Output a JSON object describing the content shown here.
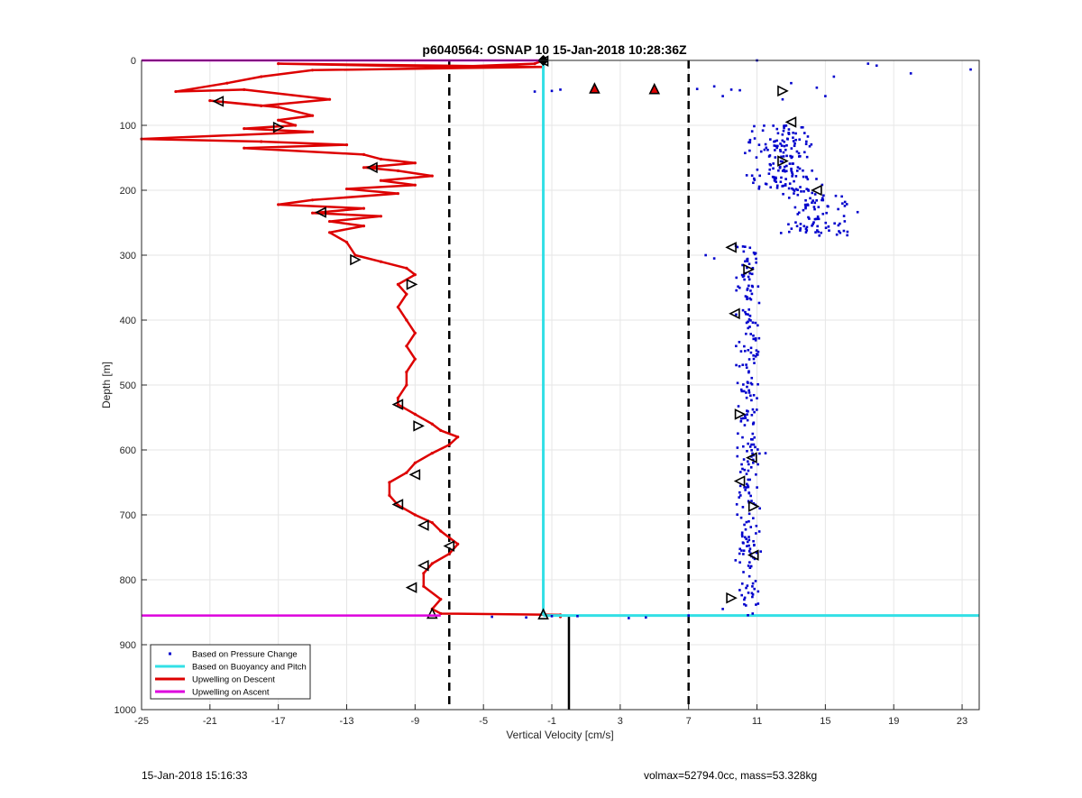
{
  "footer": {
    "timestamp": "15-Jan-2018 15:16:33",
    "glider_info": "volmax=52794.0cc, mass=53.328kg"
  },
  "chart_data": {
    "type": "scatter",
    "title": "p6040564: OSNAP 10 15-Jan-2018 10:28:36Z",
    "xlabel": "Vertical Velocity [cm/s]",
    "ylabel": "Depth [m]",
    "xlim": [
      -25,
      24
    ],
    "ylim": [
      1000,
      0
    ],
    "y_reversed": true,
    "grid": true,
    "xticks": [
      -25,
      -21,
      -17,
      -13,
      -9,
      -5,
      -1,
      3,
      7,
      11,
      15,
      19,
      23
    ],
    "yticks": [
      0,
      100,
      200,
      300,
      400,
      500,
      600,
      700,
      800,
      900,
      1000
    ],
    "legend_position": "bottom-left",
    "legend": [
      {
        "label": "Based on Pressure Change",
        "style": "dot",
        "color": "#0000cc"
      },
      {
        "label": "Based on Buoyancy and Pitch",
        "style": "line",
        "color": "#33e0e6"
      },
      {
        "label": "Upwelling on Descent",
        "style": "line",
        "color": "#dd0000"
      },
      {
        "label": "Upwelling on Ascent",
        "style": "line",
        "color": "#dd00dd"
      }
    ],
    "reference_lines": [
      {
        "x": -7,
        "style": "dashed",
        "color": "#000000"
      },
      {
        "x": 7,
        "style": "dashed",
        "color": "#000000"
      },
      {
        "x": 0,
        "y_from": 855,
        "y_to": 1000,
        "style": "solid",
        "color": "#000000"
      }
    ],
    "series": [
      {
        "name": "Upwelling on Descent",
        "kind": "line",
        "color": "#dd0000",
        "points": [
          [
            -1.5,
            0
          ],
          [
            -2,
            5
          ],
          [
            -7,
            10
          ],
          [
            -17,
            5
          ],
          [
            -1.5,
            10
          ],
          [
            -15,
            15
          ],
          [
            -18,
            25
          ],
          [
            -20,
            35
          ],
          [
            -23,
            48
          ],
          [
            -19,
            45
          ],
          [
            -14,
            60
          ],
          [
            -18,
            70
          ],
          [
            -21,
            62
          ],
          [
            -17,
            72
          ],
          [
            -15,
            85
          ],
          [
            -17,
            92
          ],
          [
            -16,
            100
          ],
          [
            -19,
            105
          ],
          [
            -15,
            110
          ],
          [
            -25,
            121
          ],
          [
            -18,
            125
          ],
          [
            -13,
            130
          ],
          [
            -19,
            135
          ],
          [
            -12,
            145
          ],
          [
            -11,
            152
          ],
          [
            -9,
            158
          ],
          [
            -12,
            165
          ],
          [
            -10,
            170
          ],
          [
            -8,
            178
          ],
          [
            -11,
            185
          ],
          [
            -9,
            192
          ],
          [
            -13,
            198
          ],
          [
            -10,
            205
          ],
          [
            -15,
            215
          ],
          [
            -17,
            222
          ],
          [
            -12,
            228
          ],
          [
            -15,
            235
          ],
          [
            -11,
            240
          ],
          [
            -14,
            248
          ],
          [
            -12,
            255
          ],
          [
            -14,
            265
          ],
          [
            -13,
            280
          ],
          [
            -12.5,
            300
          ],
          [
            -11,
            310
          ],
          [
            -9.5,
            320
          ],
          [
            -9,
            330
          ],
          [
            -10,
            345
          ],
          [
            -9.5,
            360
          ],
          [
            -10,
            380
          ],
          [
            -9.5,
            400
          ],
          [
            -9,
            420
          ],
          [
            -9.5,
            440
          ],
          [
            -9,
            460
          ],
          [
            -9.5,
            480
          ],
          [
            -9.5,
            500
          ],
          [
            -10,
            520
          ],
          [
            -10,
            530
          ],
          [
            -9,
            545
          ],
          [
            -8,
            560
          ],
          [
            -7.5,
            570
          ],
          [
            -6.5,
            580
          ],
          [
            -7,
            592
          ],
          [
            -8,
            605
          ],
          [
            -9,
            620
          ],
          [
            -9.5,
            635
          ],
          [
            -10.5,
            650
          ],
          [
            -10.5,
            670
          ],
          [
            -10,
            685
          ],
          [
            -9,
            700
          ],
          [
            -8,
            712
          ],
          [
            -7.5,
            725
          ],
          [
            -6.5,
            745
          ],
          [
            -7,
            760
          ],
          [
            -8,
            775
          ],
          [
            -8.5,
            790
          ],
          [
            -8.5,
            810
          ],
          [
            -7.5,
            830
          ],
          [
            -8,
            845
          ],
          [
            -7.5,
            852
          ],
          [
            -0.5,
            854
          ],
          [
            -0.5,
            857
          ]
        ],
        "markers": [
          {
            "x": -1.5,
            "y": 1,
            "shape": "left"
          },
          {
            "x": -20.5,
            "y": 63,
            "shape": "left"
          },
          {
            "x": -17,
            "y": 103,
            "shape": "right"
          },
          {
            "x": -11.5,
            "y": 165,
            "shape": "left"
          },
          {
            "x": -14.5,
            "y": 234,
            "shape": "left"
          },
          {
            "x": -12.5,
            "y": 307,
            "shape": "right"
          },
          {
            "x": -9.2,
            "y": 345,
            "shape": "right"
          },
          {
            "x": -10,
            "y": 530,
            "shape": "left"
          },
          {
            "x": -8.8,
            "y": 563,
            "shape": "right"
          },
          {
            "x": -9,
            "y": 638,
            "shape": "left"
          },
          {
            "x": -10,
            "y": 684,
            "shape": "left"
          },
          {
            "x": -8.5,
            "y": 716,
            "shape": "left"
          },
          {
            "x": -7,
            "y": 748,
            "shape": "left"
          },
          {
            "x": -8.5,
            "y": 778,
            "shape": "left"
          },
          {
            "x": -9.2,
            "y": 812,
            "shape": "left"
          },
          {
            "x": -8,
            "y": 852,
            "shape": "up"
          }
        ]
      },
      {
        "name": "Upwelling on Ascent",
        "kind": "hline",
        "color": "#dd00dd",
        "segments": [
          {
            "y": 0,
            "x_from": -25,
            "x_to": -1.5
          },
          {
            "y": 855,
            "x_from": -25,
            "x_to": -7.5
          }
        ]
      },
      {
        "name": "Based on Buoyancy and Pitch",
        "kind": "line",
        "color": "#33e0e6",
        "points": [
          [
            -1.5,
            0
          ],
          [
            -1.5,
            855
          ]
        ],
        "extra_hline": {
          "y": 855,
          "x_from": -1.5,
          "x_to": 24
        }
      },
      {
        "name": "Based on Pressure Change",
        "kind": "scatter",
        "color": "#0000cc",
        "clusters": [
          {
            "x_center": 12.5,
            "x_spread": 2.5,
            "y_from": 100,
            "y_to": 200,
            "count": 160
          },
          {
            "x_center": 14.5,
            "x_spread": 2.5,
            "y_from": 200,
            "y_to": 270,
            "count": 90
          },
          {
            "x_center": 10.5,
            "x_spread": 0.8,
            "y_from": 285,
            "y_to": 855,
            "count": 260
          }
        ],
        "points": [
          [
            11,
            0
          ],
          [
            17.5,
            5
          ],
          [
            18,
            8
          ],
          [
            20,
            20
          ],
          [
            23.5,
            14
          ],
          [
            15.5,
            25
          ],
          [
            13,
            35
          ],
          [
            14.5,
            42
          ],
          [
            8.5,
            40
          ],
          [
            9.5,
            45
          ],
          [
            10,
            46
          ],
          [
            7.5,
            44
          ],
          [
            9,
            55
          ],
          [
            12.5,
            60
          ],
          [
            15,
            55
          ],
          [
            8,
            300
          ],
          [
            8.5,
            305
          ],
          [
            11.5,
            605
          ],
          [
            10.5,
            820
          ],
          [
            9,
            845
          ],
          [
            0.5,
            856
          ],
          [
            -4.5,
            857
          ],
          [
            -2.5,
            858
          ],
          [
            4.5,
            858
          ],
          [
            3.5,
            859
          ],
          [
            -1,
            856
          ],
          [
            7,
            855
          ],
          [
            -2,
            48
          ],
          [
            -1,
            47
          ],
          [
            -0.5,
            45
          ]
        ]
      },
      {
        "name": "Based on Pressure Change markers",
        "kind": "markers",
        "color": "#000000",
        "markers": [
          {
            "x": 12.5,
            "y": 47,
            "shape": "right"
          },
          {
            "x": 13,
            "y": 95,
            "shape": "left"
          },
          {
            "x": 12.5,
            "y": 155,
            "shape": "right"
          },
          {
            "x": 14.5,
            "y": 200,
            "shape": "left"
          },
          {
            "x": 9.5,
            "y": 288,
            "shape": "left"
          },
          {
            "x": 10.5,
            "y": 322,
            "shape": "right"
          },
          {
            "x": 9.7,
            "y": 390,
            "shape": "left"
          },
          {
            "x": 10,
            "y": 545,
            "shape": "right"
          },
          {
            "x": 10.7,
            "y": 612,
            "shape": "left"
          },
          {
            "x": 10,
            "y": 648,
            "shape": "left"
          },
          {
            "x": 10.8,
            "y": 687,
            "shape": "right"
          },
          {
            "x": 10.8,
            "y": 762,
            "shape": "left"
          },
          {
            "x": 9.5,
            "y": 828,
            "shape": "right"
          },
          {
            "x": -1.5,
            "y": 853,
            "shape": "up"
          },
          {
            "x": 1.5,
            "y": 43,
            "shape": "up_red"
          },
          {
            "x": 5,
            "y": 44,
            "shape": "up_red"
          },
          {
            "x": -1.5,
            "y": 0,
            "shape": "diamond"
          }
        ]
      }
    ]
  }
}
